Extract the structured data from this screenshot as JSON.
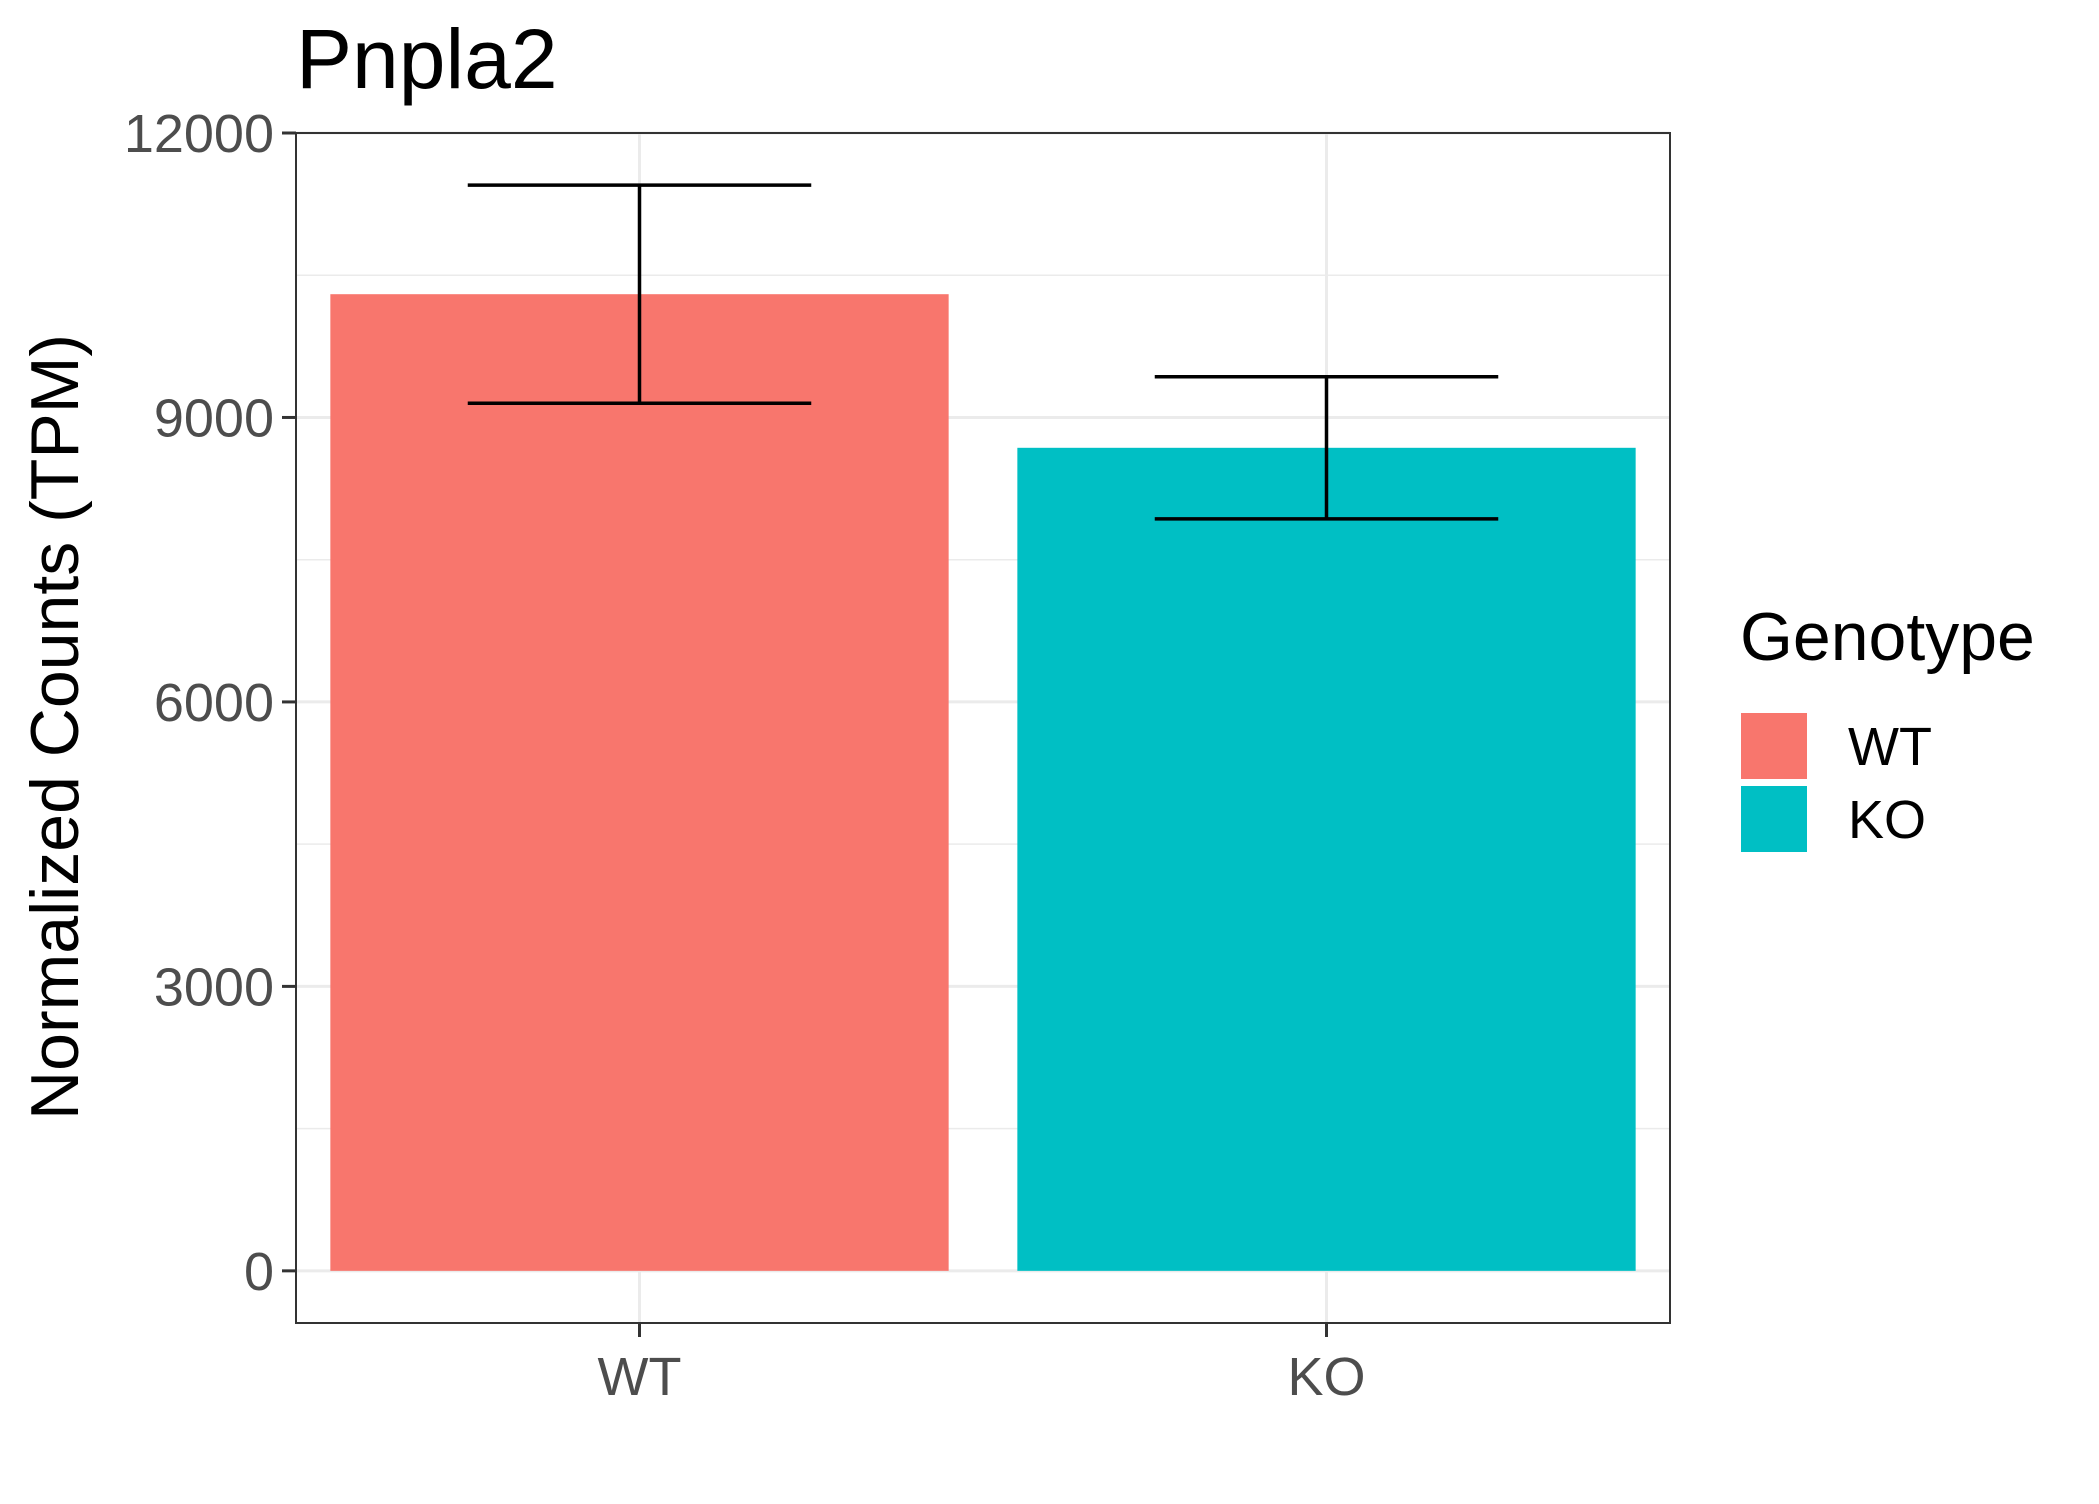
{
  "chart_data": {
    "type": "bar",
    "title": "Pnpla2",
    "xlabel": "",
    "ylabel": "Normalized Counts (TPM)",
    "categories": [
      "WT",
      "KO"
    ],
    "values": [
      10300,
      8680
    ],
    "error_bars": [
      {
        "low": 9150,
        "high": 11450
      },
      {
        "low": 7930,
        "high": 9430
      }
    ],
    "colors": [
      "#F8766D",
      "#00BFC4"
    ],
    "ylim": [
      -550,
      12000
    ],
    "yticks": [
      0,
      3000,
      6000,
      9000,
      12000
    ],
    "ytick_labels": [
      "0",
      "3000",
      "6000",
      "9000",
      "12000"
    ],
    "grid": true,
    "legend": {
      "title": "Genotype",
      "position": "right",
      "entries": [
        {
          "label": "WT",
          "color": "#F8766D"
        },
        {
          "label": "KO",
          "color": "#00BFC4"
        }
      ]
    }
  }
}
